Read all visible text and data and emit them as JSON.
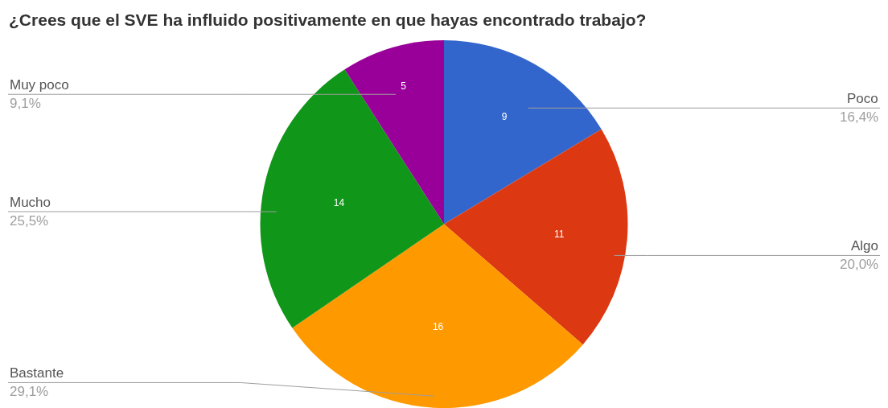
{
  "chart_data": {
    "type": "pie",
    "title": "¿Crees que el SVE ha influido positivamente en que hayas encontrado trabajo?",
    "categories": [
      "Poco",
      "Algo",
      "Bastante",
      "Mucho",
      "Muy poco"
    ],
    "values": [
      9,
      11,
      16,
      14,
      5
    ],
    "colors": [
      "#3366cc",
      "#dc3912",
      "#ff9900",
      "#109618",
      "#990099"
    ],
    "annotations": [
      "16,4%",
      "20,0%",
      "29,1%",
      "25,5%",
      "9,1%"
    ],
    "data_labels": true,
    "legend": false
  }
}
